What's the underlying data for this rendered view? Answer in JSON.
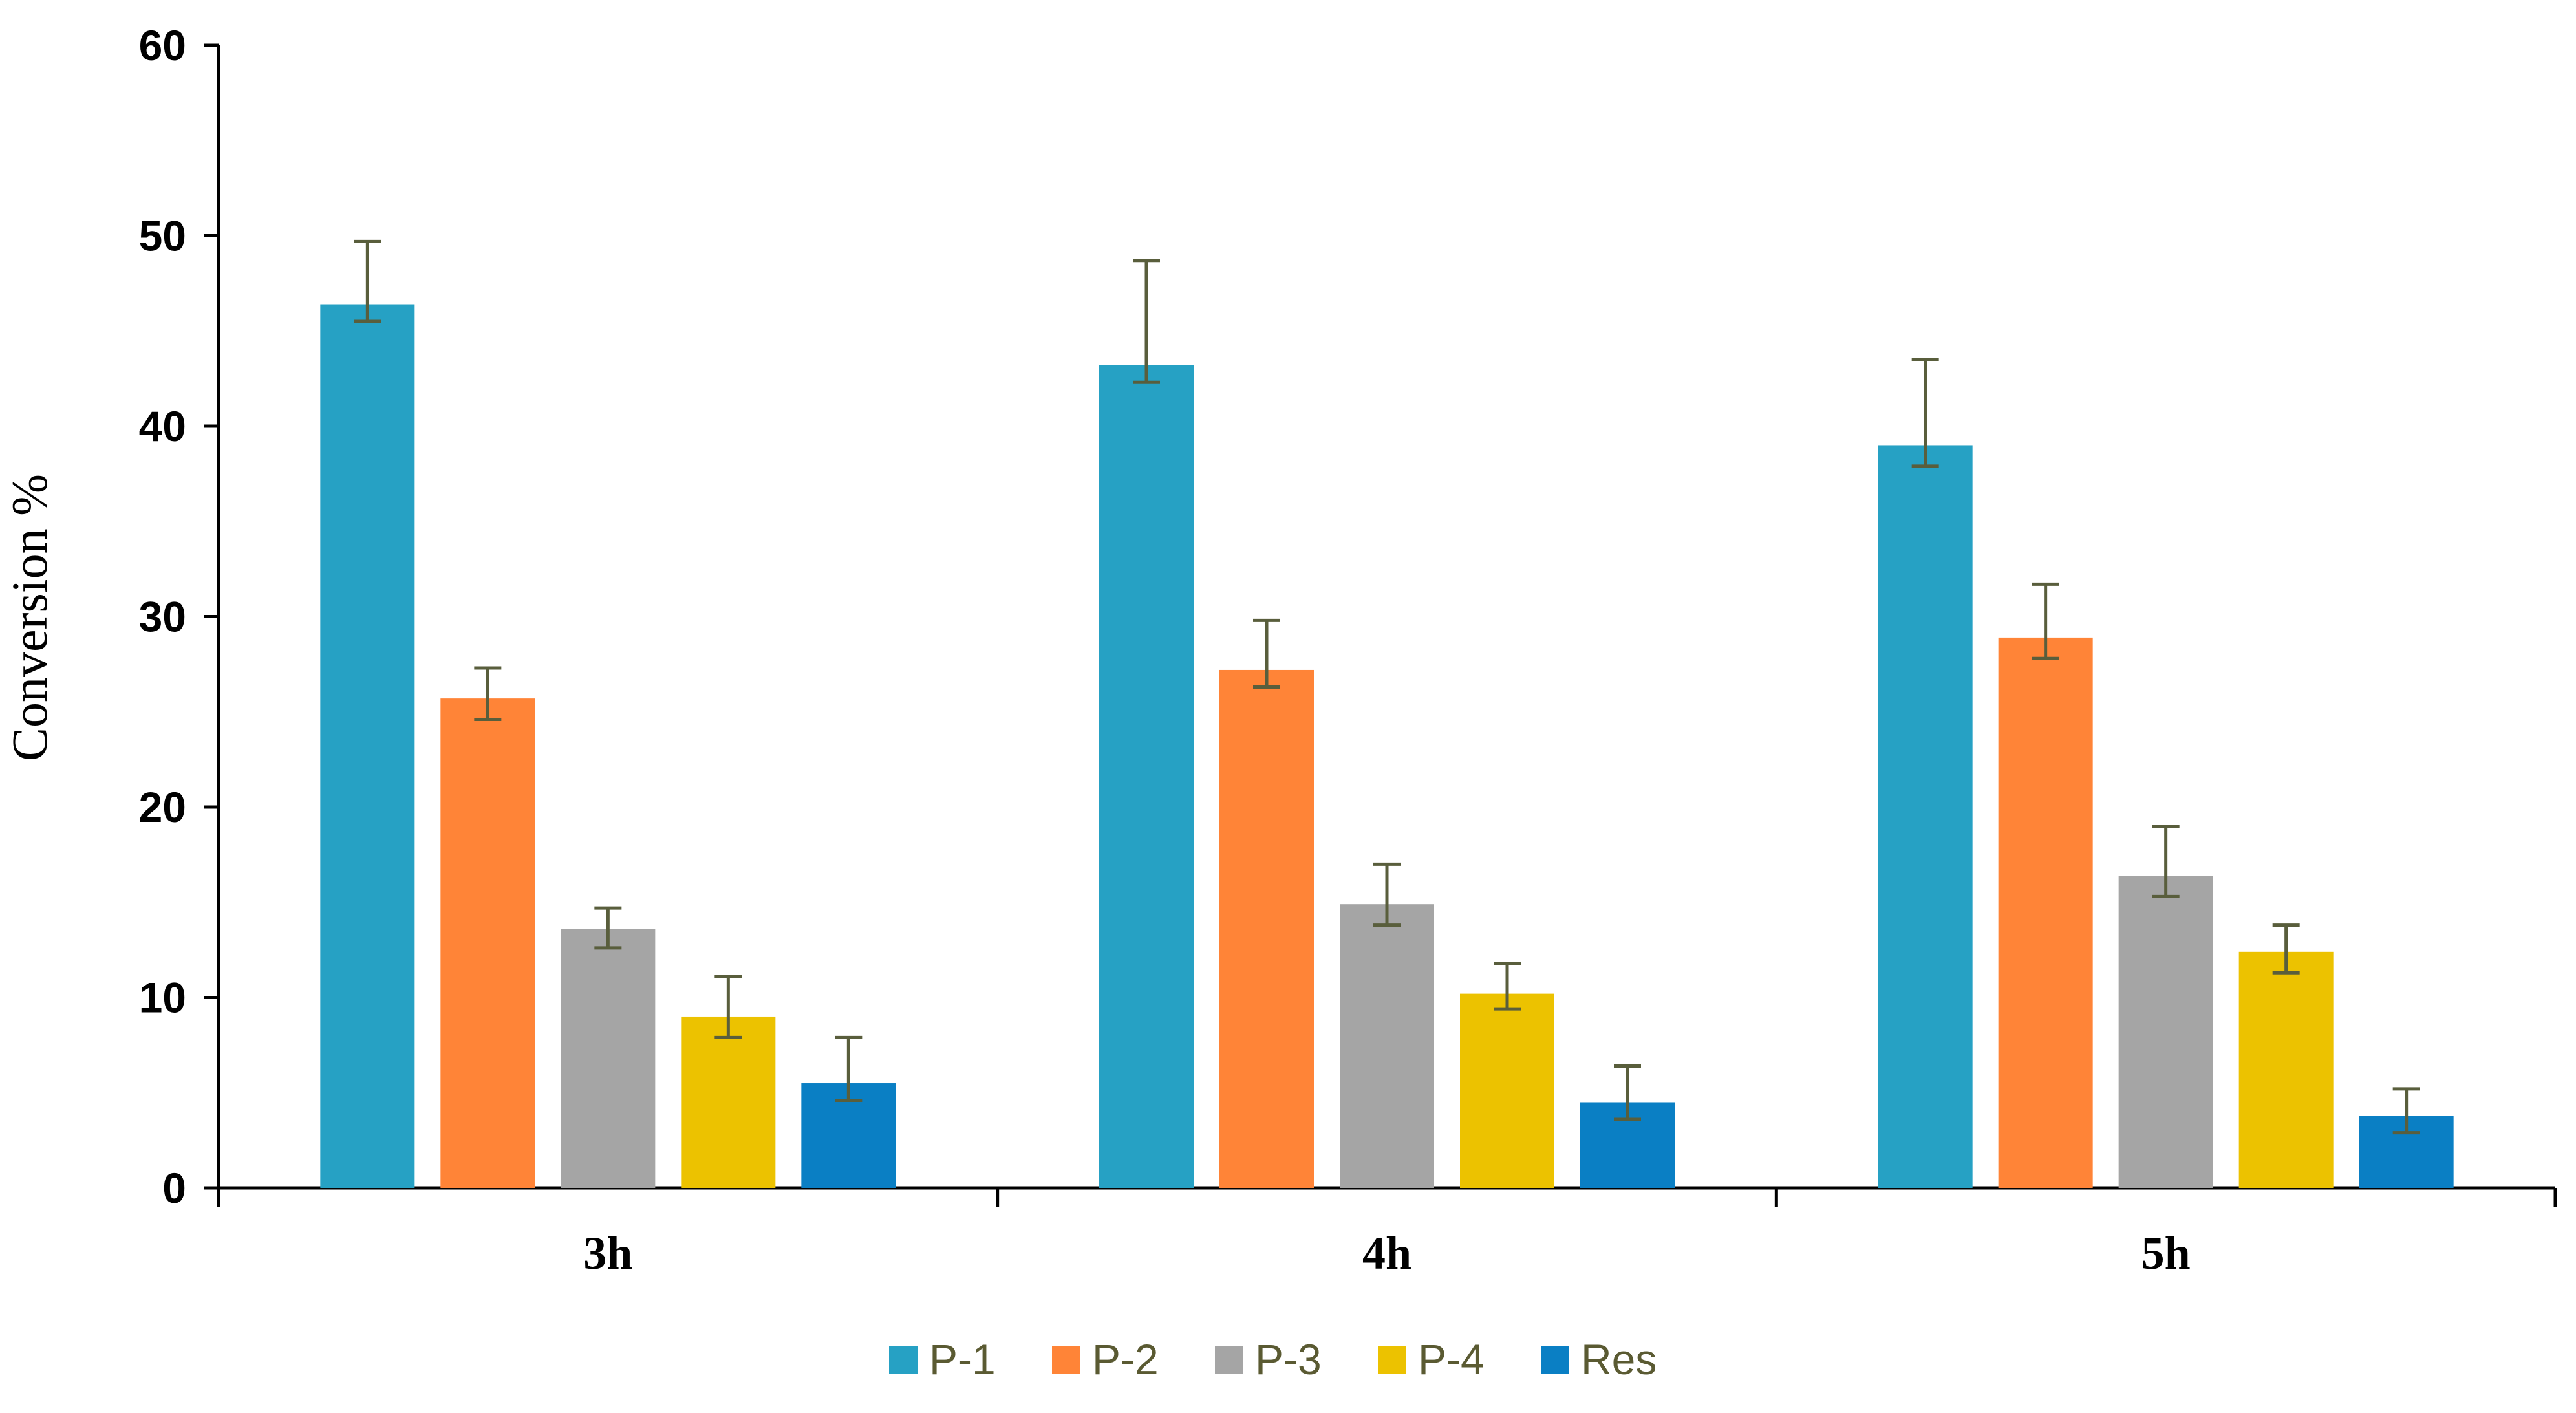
{
  "chart_data": {
    "type": "bar",
    "title": "",
    "xlabel": "",
    "ylabel": "Conversion %",
    "ylim": [
      0,
      60
    ],
    "yticks": [
      "0",
      "10",
      "20",
      "30",
      "40",
      "50",
      "60"
    ],
    "categories": [
      "3h",
      "4h",
      "5h"
    ],
    "grid": false,
    "legend_position": "bottom",
    "error_bar_color": "#595e3c",
    "series": [
      {
        "name": "P-1",
        "color": "#26a1c4",
        "values": [
          46.4,
          43.2,
          39.0
        ],
        "err_low": [
          0.9,
          0.9,
          1.1
        ],
        "err_high": [
          3.3,
          5.5,
          4.5
        ]
      },
      {
        "name": "P-2",
        "color": "#ff8437",
        "values": [
          25.7,
          27.2,
          28.9
        ],
        "err_low": [
          1.1,
          0.9,
          1.1
        ],
        "err_high": [
          1.6,
          2.6,
          2.8
        ]
      },
      {
        "name": "P-3",
        "color": "#a5a5a5",
        "values": [
          13.6,
          14.9,
          16.4
        ],
        "err_low": [
          1.0,
          1.1,
          1.1
        ],
        "err_high": [
          1.1,
          2.1,
          2.6
        ]
      },
      {
        "name": "P-4",
        "color": "#ecc200",
        "values": [
          9.0,
          10.2,
          12.4
        ],
        "err_low": [
          1.1,
          0.8,
          1.1
        ],
        "err_high": [
          2.1,
          1.6,
          1.4
        ]
      },
      {
        "name": "Res",
        "color": "#0a7fc4",
        "values": [
          5.5,
          4.5,
          3.8
        ],
        "err_low": [
          0.9,
          0.9,
          0.9
        ],
        "err_high": [
          2.4,
          1.9,
          1.4
        ]
      }
    ]
  }
}
